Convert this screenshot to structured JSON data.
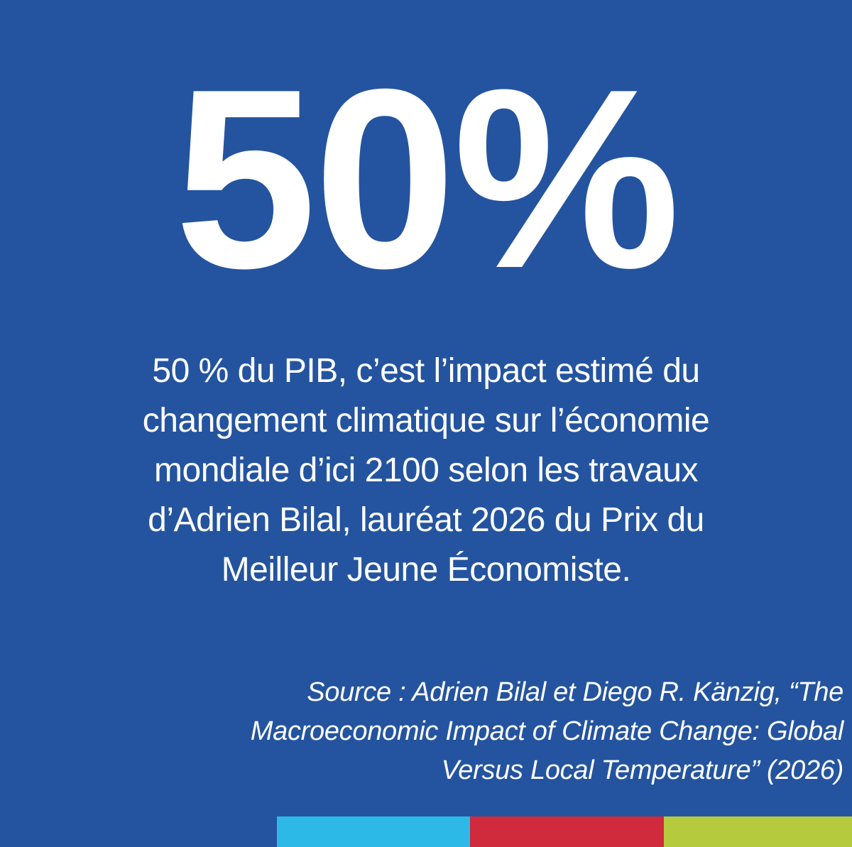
{
  "headline": "50%",
  "body": [
    "50 % du PIB, c’est l’impact estimé du",
    "changement climatique sur l’économie",
    "mondiale d’ici 2100 selon les travaux",
    "d’Adrien Bilal, lauréat 2026 du Prix du",
    "Meilleur Jeune Économiste."
  ],
  "source": [
    "Source : Adrien Bilal et Diego R. Känzig, “The",
    "Macroeconomic Impact of Climate Change: Global",
    "Versus Local Temperature” (2026)"
  ]
}
